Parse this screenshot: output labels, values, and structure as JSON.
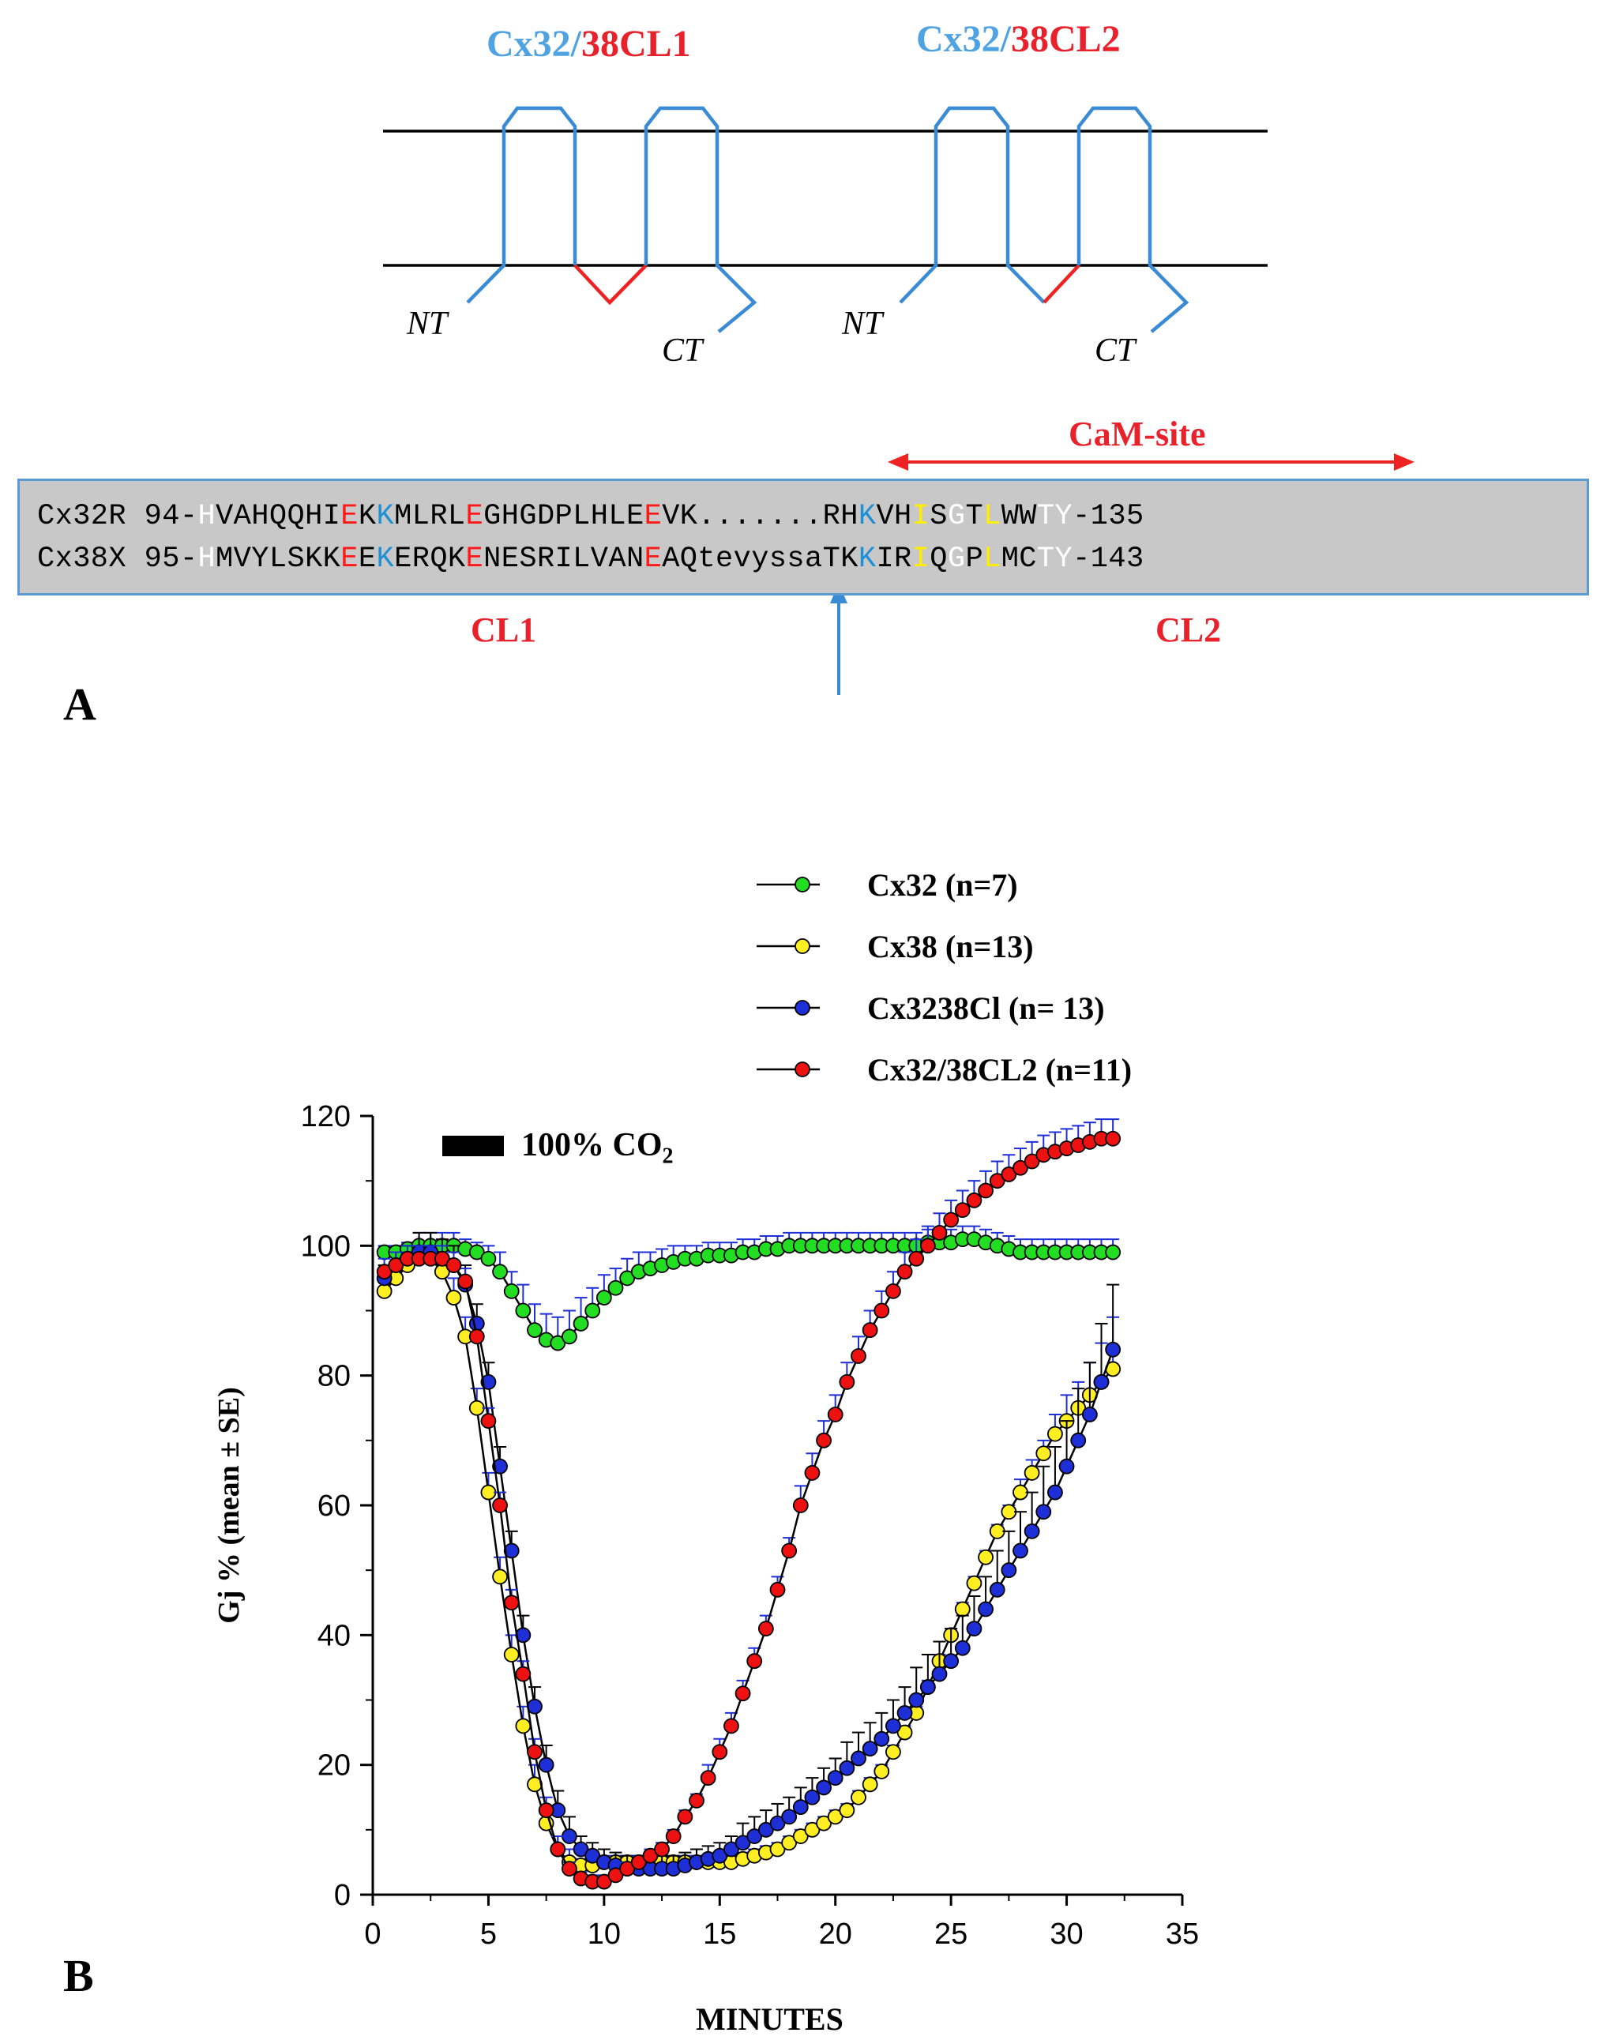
{
  "panel_a": {
    "label": "A",
    "topology": {
      "chimera1": {
        "prefix": "Cx32/",
        "suffix": "38CL1"
      },
      "chimera2": {
        "prefix": "Cx32/",
        "suffix": "38CL2"
      },
      "nt": "NT",
      "ct": "CT"
    },
    "cam_site": "CaM-site",
    "cl1": "CL1",
    "cl2": "CL2",
    "alignment": [
      [
        [
          "Cx32R 94-",
          ""
        ],
        [
          "H",
          "w"
        ],
        [
          "VAHQQHI",
          ""
        ],
        [
          "E",
          "r"
        ],
        [
          "K",
          ""
        ],
        [
          "K",
          "b"
        ],
        [
          "MLRL",
          ""
        ],
        [
          "E",
          "r"
        ],
        [
          "GHGDPLHLE",
          ""
        ],
        [
          "E",
          "r"
        ],
        [
          "VK.......RH",
          ""
        ],
        [
          "K",
          "b"
        ],
        [
          "VH",
          ""
        ],
        [
          "I",
          "y"
        ],
        [
          "S",
          ""
        ],
        [
          "G",
          "w"
        ],
        [
          "T",
          ""
        ],
        [
          "L",
          "y"
        ],
        [
          "WW",
          ""
        ],
        [
          "TY",
          "w"
        ],
        [
          "-135",
          ""
        ]
      ],
      [
        [
          "Cx38X 95-",
          ""
        ],
        [
          "H",
          "w"
        ],
        [
          "MVYLSKK",
          ""
        ],
        [
          "E",
          "r"
        ],
        [
          "E",
          ""
        ],
        [
          "K",
          "b"
        ],
        [
          "ERQK",
          ""
        ],
        [
          "E",
          "r"
        ],
        [
          "NESRILVAN",
          ""
        ],
        [
          "E",
          "r"
        ],
        [
          "AQtevyssaTK",
          ""
        ],
        [
          "K",
          "b"
        ],
        [
          "IR",
          ""
        ],
        [
          "I",
          "y"
        ],
        [
          "Q",
          ""
        ],
        [
          "G",
          "w"
        ],
        [
          "P",
          ""
        ],
        [
          "L",
          "y"
        ],
        [
          "MC",
          ""
        ],
        [
          "TY",
          "w"
        ],
        [
          "-143",
          ""
        ]
      ]
    ]
  },
  "panel_b": {
    "label": "B",
    "co2_label": "100% CO",
    "co2_sub": "2"
  },
  "chart_data": {
    "type": "scatter",
    "title": "",
    "xlabel": "MINUTES",
    "ylabel": "Gj % (mean ± SE)",
    "xlim": [
      0,
      35
    ],
    "ylim": [
      0,
      120
    ],
    "xticks": [
      "0",
      "5",
      "10",
      "15",
      "20",
      "25",
      "30",
      "35"
    ],
    "yticks": [
      "0",
      "20",
      "40",
      "60",
      "80",
      "100",
      "120"
    ],
    "x": [
      0.5,
      1,
      1.5,
      2,
      2.5,
      3,
      3.5,
      4,
      4.5,
      5,
      5.5,
      6,
      6.5,
      7,
      7.5,
      8,
      8.5,
      9,
      9.5,
      10,
      10.5,
      11,
      11.5,
      12,
      12.5,
      13,
      13.5,
      14,
      14.5,
      15,
      15.5,
      16,
      16.5,
      17,
      17.5,
      18,
      18.5,
      19,
      19.5,
      20,
      20.5,
      21,
      21.5,
      22,
      22.5,
      23,
      23.5,
      24,
      24.5,
      25,
      25.5,
      26,
      26.5,
      27,
      27.5,
      28,
      28.5,
      29,
      29.5,
      30,
      30.5,
      31,
      31.5,
      32
    ],
    "series": [
      {
        "name": "Cx32 (n=7)",
        "color": "#22dd22",
        "values": [
          99,
          99,
          99.5,
          100,
          100,
          100,
          100,
          99.5,
          99,
          98,
          96,
          93,
          90,
          87,
          85.5,
          85,
          86,
          88,
          90,
          92,
          93.5,
          95,
          96,
          96.5,
          97,
          97.5,
          98,
          98,
          98.5,
          98.5,
          98.5,
          99,
          99,
          99.5,
          99.5,
          100,
          100,
          100,
          100,
          100,
          100,
          100,
          100,
          100,
          100,
          100,
          100,
          100.5,
          100.5,
          100.5,
          101,
          101,
          100.5,
          100,
          99.5,
          99,
          99,
          99,
          99,
          99,
          99,
          99,
          99,
          99
        ],
        "err": [
          1,
          1,
          1,
          2,
          2,
          2,
          2,
          1.5,
          1.5,
          2,
          3,
          3,
          4,
          4,
          4,
          4,
          4,
          4,
          3.5,
          3.5,
          3,
          3,
          3,
          2.5,
          2.5,
          2.5,
          2,
          2,
          2,
          2,
          2,
          2,
          2,
          2,
          2,
          2,
          2,
          2,
          2,
          2,
          2,
          2,
          2,
          2,
          2,
          2,
          2,
          2,
          2,
          2,
          2,
          2,
          2,
          2,
          2,
          2,
          2,
          2,
          2,
          2,
          2,
          2,
          2,
          2
        ]
      },
      {
        "name": "Cx38 (n=13)",
        "color": "#ffee22",
        "values": [
          93,
          95,
          97,
          98,
          98,
          96,
          92,
          86,
          75,
          62,
          49,
          37,
          26,
          17,
          11,
          7,
          5,
          4.5,
          4.5,
          5,
          5,
          5,
          5,
          5,
          5,
          5,
          5,
          5,
          5,
          5,
          5,
          5.5,
          6,
          6.5,
          7,
          8,
          9,
          10,
          11,
          12,
          13,
          15,
          17,
          19,
          22,
          25,
          28,
          32,
          36,
          40,
          44,
          48,
          52,
          56,
          59,
          62,
          65,
          68,
          71,
          73,
          75,
          77,
          79,
          81
        ],
        "err": [
          2,
          2,
          2,
          2,
          2,
          2,
          3,
          3,
          3,
          3,
          3,
          3,
          3,
          3,
          2,
          2,
          2,
          1,
          1,
          1,
          1,
          1,
          1,
          1,
          1,
          1,
          1,
          1,
          1,
          1,
          1,
          1,
          1,
          1,
          1,
          1,
          1,
          1,
          1,
          1,
          1,
          1,
          1,
          1,
          1,
          1,
          1,
          1,
          1,
          1,
          1,
          1,
          1,
          1,
          1,
          2,
          2,
          2,
          3,
          4,
          4,
          5,
          6,
          8
        ]
      },
      {
        "name": "Cx3238Cl (n= 13)",
        "color": "#1e2fd8",
        "values": [
          95,
          97,
          98,
          99,
          99,
          98,
          97,
          94,
          88,
          79,
          66,
          53,
          40,
          29,
          20,
          13,
          9,
          7,
          6,
          5,
          4.5,
          4,
          4,
          4,
          4,
          4,
          4.5,
          5,
          5.5,
          6,
          7,
          8,
          9,
          10,
          11,
          12,
          13.5,
          15,
          16.5,
          18,
          19.5,
          21,
          22.5,
          24,
          26,
          28,
          30,
          32,
          34,
          36,
          38,
          41,
          44,
          47,
          50,
          53,
          56,
          59,
          62,
          66,
          70,
          74,
          79,
          84
        ],
        "err": [
          2,
          2,
          2,
          3,
          3,
          3,
          3,
          3,
          3,
          3,
          3,
          3,
          3,
          3,
          3,
          3,
          3,
          2,
          2,
          2,
          2,
          2,
          2,
          2,
          2,
          2,
          2,
          2,
          2,
          2,
          2,
          3,
          3,
          3,
          3,
          3,
          3,
          3,
          3,
          3,
          4,
          4,
          4,
          4,
          4,
          4,
          5,
          5,
          5,
          5,
          5,
          5,
          5,
          6,
          6,
          6,
          6,
          7,
          7,
          7,
          8,
          8,
          9,
          10
        ]
      },
      {
        "name": "Cx32/38CL2 (n=11)",
        "color": "#ee1111",
        "values": [
          96,
          97,
          98,
          98,
          98,
          98,
          97,
          94.5,
          86,
          73,
          60,
          45,
          34,
          22,
          13,
          7,
          4,
          2.5,
          2,
          2,
          3,
          4,
          5,
          6,
          7,
          9,
          12,
          14.5,
          18,
          22,
          26,
          31,
          36,
          41,
          47,
          53,
          60,
          65,
          70,
          74,
          79,
          83,
          87,
          90,
          93,
          96,
          98,
          100,
          102,
          104,
          105.5,
          107,
          108.5,
          110,
          111,
          112,
          113,
          114,
          114.5,
          115,
          115.5,
          116,
          116.5,
          116.5
        ],
        "err": [
          2,
          2,
          2,
          2,
          2,
          2,
          2,
          2,
          2,
          2,
          2,
          2,
          2,
          2,
          2,
          2,
          1,
          1,
          1,
          1,
          1,
          1,
          1,
          1,
          1,
          1,
          1,
          1,
          2,
          2,
          2,
          2,
          2,
          2,
          2,
          2,
          3,
          3,
          3,
          3,
          3,
          3,
          3,
          3,
          3,
          3,
          3,
          3,
          3,
          3,
          3,
          3,
          3,
          3,
          3,
          3,
          3,
          3,
          3,
          3,
          3,
          3,
          3,
          3
        ]
      }
    ],
    "legend_position": "top-right"
  }
}
